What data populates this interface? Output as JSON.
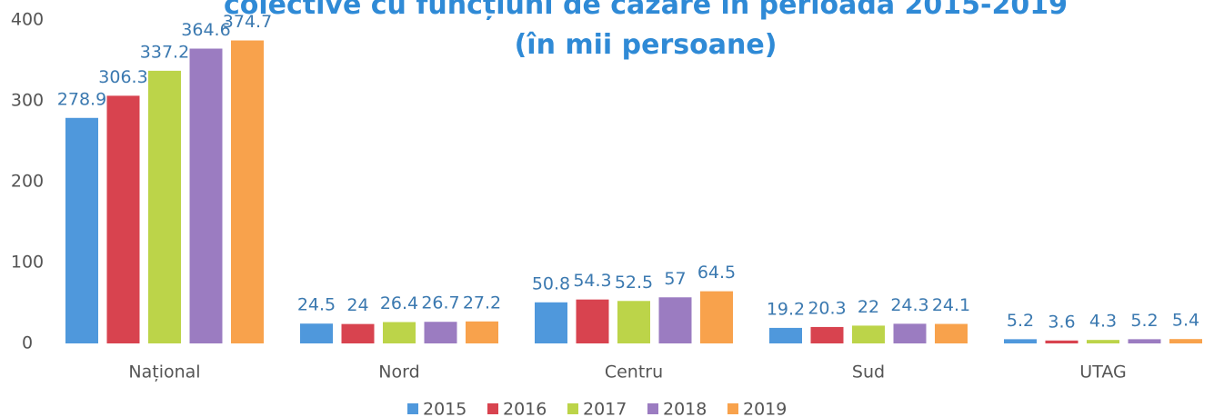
{
  "chart_data": {
    "type": "bar",
    "title": "colective cu funcțiuni de cazare în perioada 2015-2019 (în mii persoane)",
    "categories": [
      "Național",
      "Nord",
      "Centru",
      "Sud",
      "UTAG"
    ],
    "series": [
      {
        "name": "2015",
        "color": "#4f98dc",
        "values": [
          278.9,
          24.5,
          50.8,
          19.2,
          5.2
        ]
      },
      {
        "name": "2016",
        "color": "#d8434f",
        "values": [
          306.3,
          24,
          54.3,
          20.3,
          3.6
        ]
      },
      {
        "name": "2017",
        "color": "#bcd449",
        "values": [
          337.2,
          26.4,
          52.5,
          22,
          4.3
        ]
      },
      {
        "name": "2018",
        "color": "#9b7cc1",
        "values": [
          364.6,
          26.7,
          57,
          24.3,
          5.2
        ]
      },
      {
        "name": "2019",
        "color": "#f8a24c",
        "values": [
          374.7,
          27.2,
          64.5,
          24.1,
          5.4
        ]
      }
    ],
    "ylim": [
      0,
      400
    ],
    "yticks": [
      0,
      100,
      200,
      300,
      400
    ],
    "grid": false,
    "legend": "bottom"
  }
}
